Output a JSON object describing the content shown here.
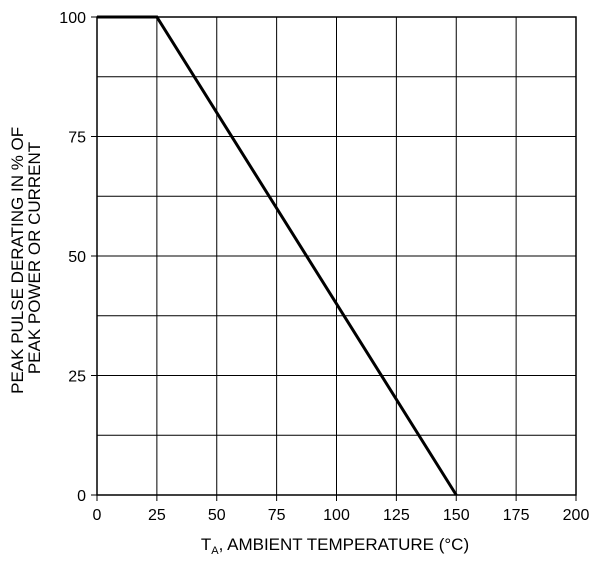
{
  "chart_data": {
    "type": "line",
    "title": "",
    "xlabel": {
      "prefix": "T",
      "subscript": "A",
      "suffix": ", AMBIENT TEMPERATURE (°C)"
    },
    "ylabel_lines": [
      "PEAK PULSE DERATING IN % OF",
      "PEAK POWER OR CURRENT"
    ],
    "xlim": [
      0,
      200
    ],
    "ylim": [
      0,
      100
    ],
    "x_ticks": [
      0,
      25,
      50,
      75,
      100,
      125,
      150,
      175,
      200
    ],
    "x_tick_labels": [
      "0",
      "25",
      "50",
      "75",
      "100",
      "125",
      "150",
      "175",
      "200"
    ],
    "y_ticks": [
      0,
      25,
      50,
      75,
      100
    ],
    "y_tick_labels": [
      "0",
      "25",
      "50",
      "75",
      "100"
    ],
    "y_gridlines": [
      12.5,
      25,
      37.5,
      50,
      62.5,
      75,
      87.5
    ],
    "grid": true,
    "series": [
      {
        "x": [
          0,
          25,
          150
        ],
        "y": [
          100,
          100,
          0
        ],
        "color": "#000000"
      }
    ]
  }
}
